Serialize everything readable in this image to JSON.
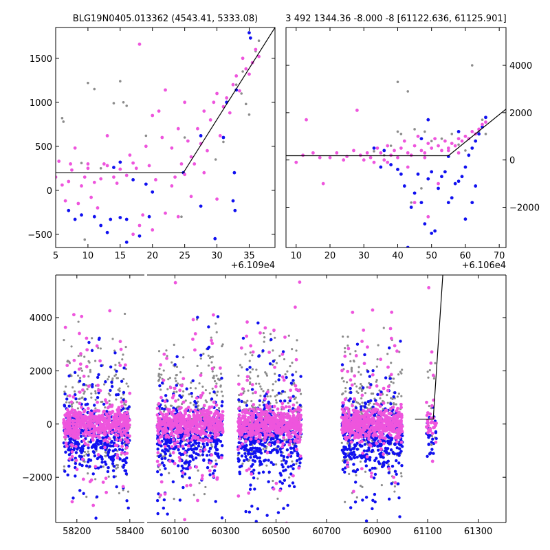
{
  "chart_data": [
    {
      "type": "scatter",
      "panel": "top-left",
      "title": "BLG19N0405.013362 (4543.41, 5333.08)",
      "x_offset_label": "+6.109e4",
      "xlim": [
        5,
        39
      ],
      "ylim": [
        -650,
        1850
      ],
      "x_ticks": [
        5,
        10,
        15,
        20,
        25,
        30,
        35
      ],
      "y_ticks": [
        -500,
        0,
        500,
        1000,
        1500
      ],
      "y_tick_labels": [
        "−500",
        "0",
        "500",
        "1000",
        "1500"
      ],
      "model_line": {
        "x": [
          5,
          24.8,
          39
        ],
        "y": [
          200,
          200,
          1850
        ]
      },
      "series": [
        {
          "name": "gray",
          "color": "#8c8c8c",
          "points": [
            [
              6,
              820
            ],
            [
              6.2,
              780
            ],
            [
              9,
              310
            ],
            [
              10,
              1220
            ],
            [
              11,
              1150
            ],
            [
              14,
              990
            ],
            [
              15,
              1240
            ],
            [
              15.5,
              1000
            ],
            [
              16,
              960
            ],
            [
              12,
              250
            ],
            [
              19,
              620
            ],
            [
              25,
              600
            ],
            [
              26,
              380
            ],
            [
              33,
              1200
            ],
            [
              34,
              1350
            ],
            [
              34.5,
              980
            ],
            [
              35,
              860
            ],
            [
              36,
              1580
            ],
            [
              36.5,
              1700
            ],
            [
              33.8,
              1100
            ],
            [
              24.5,
              -300
            ],
            [
              9.5,
              -560
            ],
            [
              31,
              550
            ],
            [
              29.8,
              350
            ]
          ]
        },
        {
          "name": "blue",
          "color": "#1010f0",
          "points": [
            [
              7,
              -230
            ],
            [
              8,
              -330
            ],
            [
              9,
              -280
            ],
            [
              11,
              -300
            ],
            [
              12,
              -400
            ],
            [
              13,
              -480
            ],
            [
              13.5,
              -330
            ],
            [
              14,
              260
            ],
            [
              15,
              -310
            ],
            [
              16,
              -590
            ],
            [
              15,
              320
            ],
            [
              16,
              -330
            ],
            [
              17,
              120
            ],
            [
              18,
              -520
            ],
            [
              19,
              70
            ],
            [
              20,
              -20
            ],
            [
              19.5,
              -300
            ],
            [
              24.8,
              200
            ],
            [
              27.5,
              -180
            ],
            [
              27.5,
              620
            ],
            [
              29.7,
              -550
            ],
            [
              31,
              600
            ],
            [
              32.5,
              -120
            ],
            [
              32.8,
              -230
            ],
            [
              33,
              1140
            ],
            [
              35,
              1790
            ],
            [
              35.2,
              1730
            ],
            [
              32.7,
              200
            ],
            [
              31.5,
              1000
            ]
          ]
        },
        {
          "name": "magenta",
          "color": "#ee55dd",
          "points": [
            [
              5,
              150
            ],
            [
              5.5,
              330
            ],
            [
              6,
              60
            ],
            [
              6.5,
              -120
            ],
            [
              7,
              100
            ],
            [
              7.3,
              300
            ],
            [
              7.5,
              230
            ],
            [
              8,
              480
            ],
            [
              8.5,
              -150
            ],
            [
              9,
              50
            ],
            [
              9.5,
              150
            ],
            [
              10,
              250
            ],
            [
              10.5,
              -80
            ],
            [
              10,
              300
            ],
            [
              11,
              90
            ],
            [
              11.5,
              -200
            ],
            [
              12,
              130
            ],
            [
              12.5,
              300
            ],
            [
              13,
              620
            ],
            [
              13,
              280
            ],
            [
              14,
              150
            ],
            [
              14.5,
              80
            ],
            [
              15,
              240
            ],
            [
              16,
              170
            ],
            [
              16.5,
              400
            ],
            [
              17,
              310
            ],
            [
              17.5,
              250
            ],
            [
              18,
              1660
            ],
            [
              18,
              -400
            ],
            [
              18.5,
              -280
            ],
            [
              19,
              500
            ],
            [
              19.5,
              280
            ],
            [
              20,
              850
            ],
            [
              20.5,
              120
            ],
            [
              21,
              900
            ],
            [
              21.5,
              600
            ],
            [
              22,
              -260
            ],
            [
              22,
              1140
            ],
            [
              23,
              480
            ],
            [
              23,
              50
            ],
            [
              23.5,
              150
            ],
            [
              24,
              700
            ],
            [
              24.5,
              300
            ],
            [
              25,
              1000
            ],
            [
              25.5,
              560
            ],
            [
              25,
              180
            ],
            [
              26,
              380
            ],
            [
              26.5,
              300
            ],
            [
              27,
              700
            ],
            [
              27.5,
              530
            ],
            [
              28,
              900
            ],
            [
              28.5,
              450
            ],
            [
              29,
              800
            ],
            [
              29.5,
              1000
            ],
            [
              30,
              1100
            ],
            [
              30.5,
              620
            ],
            [
              31,
              950
            ],
            [
              31.5,
              1050
            ],
            [
              32,
              880
            ],
            [
              32.5,
              1200
            ],
            [
              33,
              1300
            ],
            [
              33.5,
              1130
            ],
            [
              34,
              1500
            ],
            [
              34.5,
              1380
            ],
            [
              35,
              1320
            ],
            [
              35.5,
              1450
            ],
            [
              36,
              1600
            ],
            [
              36.5,
              1520
            ],
            [
              26,
              -70
            ],
            [
              28,
              200
            ],
            [
              30,
              -100
            ],
            [
              24,
              -300
            ],
            [
              20,
              -450
            ],
            [
              17,
              -500
            ]
          ]
        }
      ]
    },
    {
      "type": "scatter",
      "panel": "top-right",
      "title": "3 492 1344.36 -8.000 -8 [61122.636, 61125.901]",
      "x_offset_label": "+6.106e4",
      "xlim": [
        7,
        72
      ],
      "ylim": [
        -3700,
        5600
      ],
      "x_ticks": [
        10,
        20,
        30,
        40,
        50,
        60,
        70
      ],
      "y_ticks": [
        -2000,
        0,
        2000,
        4000
      ],
      "y_tick_labels": [
        "−2000",
        "0",
        "2000",
        "4000"
      ],
      "model_line": {
        "x": [
          7,
          55,
          72
        ],
        "y": [
          180,
          180,
          2150
        ]
      },
      "series": [
        {
          "name": "gray",
          "color": "#8c8c8c",
          "points": [
            [
              33,
              370
            ],
            [
              38,
              600
            ],
            [
              40,
              1200
            ],
            [
              41,
              1100
            ],
            [
              40,
              3300
            ],
            [
              43,
              2900
            ],
            [
              45,
              1300
            ],
            [
              48,
              1200
            ],
            [
              50,
              800
            ],
            [
              53,
              900
            ],
            [
              58,
              650
            ],
            [
              62,
              4000
            ],
            [
              64,
              1200
            ],
            [
              66,
              1100
            ],
            [
              47,
              -1200
            ],
            [
              44,
              -1800
            ],
            [
              56,
              1100
            ],
            [
              60,
              400
            ],
            [
              65,
              1700
            ],
            [
              36,
              200
            ]
          ]
        },
        {
          "name": "blue",
          "color": "#1010f0",
          "points": [
            [
              33,
              500
            ],
            [
              35,
              -300
            ],
            [
              36,
              400
            ],
            [
              38,
              -200
            ],
            [
              40,
              -400
            ],
            [
              41,
              -600
            ],
            [
              42,
              -1100
            ],
            [
              43,
              -3700
            ],
            [
              44,
              -2000
            ],
            [
              45,
              -1400
            ],
            [
              46,
              -600
            ],
            [
              47,
              -1800
            ],
            [
              48,
              -2700
            ],
            [
              49,
              -800
            ],
            [
              50,
              -500
            ],
            [
              51,
              -3000
            ],
            [
              52,
              -1200
            ],
            [
              53,
              -700
            ],
            [
              54,
              -500
            ],
            [
              55,
              -1800
            ],
            [
              56,
              -1600
            ],
            [
              57,
              -1000
            ],
            [
              58,
              -900
            ],
            [
              59,
              -700
            ],
            [
              60,
              -300
            ],
            [
              61,
              200
            ],
            [
              62,
              500
            ],
            [
              63,
              800
            ],
            [
              64,
              1100
            ],
            [
              65,
              1400
            ],
            [
              66,
              1800
            ],
            [
              63,
              -1100
            ],
            [
              60,
              -2500
            ],
            [
              55,
              150
            ],
            [
              47,
              900
            ],
            [
              49,
              1700
            ],
            [
              58,
              1200
            ],
            [
              62,
              -1800
            ],
            [
              50,
              -3100
            ]
          ]
        },
        {
          "name": "magenta",
          "color": "#ee55dd",
          "points": [
            [
              10,
              -100
            ],
            [
              12,
              200
            ],
            [
              13,
              1700
            ],
            [
              15,
              300
            ],
            [
              17,
              100
            ],
            [
              18,
              -1000
            ],
            [
              20,
              100
            ],
            [
              22,
              300
            ],
            [
              24,
              0
            ],
            [
              25,
              150
            ],
            [
              27,
              400
            ],
            [
              28,
              2100
            ],
            [
              29,
              200
            ],
            [
              30,
              0
            ],
            [
              31,
              300
            ],
            [
              32,
              100
            ],
            [
              33,
              -100
            ],
            [
              34,
              500
            ],
            [
              35,
              300
            ],
            [
              36,
              0
            ],
            [
              37,
              600
            ],
            [
              38,
              200
            ],
            [
              39,
              400
            ],
            [
              40,
              100
            ],
            [
              41,
              500
            ],
            [
              42,
              800
            ],
            [
              43,
              300
            ],
            [
              44,
              200
            ],
            [
              45,
              600
            ],
            [
              46,
              1000
            ],
            [
              47,
              400
            ],
            [
              48,
              300
            ],
            [
              49,
              700
            ],
            [
              50,
              500
            ],
            [
              51,
              900
            ],
            [
              52,
              600
            ],
            [
              53,
              400
            ],
            [
              54,
              800
            ],
            [
              55,
              500
            ],
            [
              56,
              700
            ],
            [
              57,
              600
            ],
            [
              58,
              900
            ],
            [
              59,
              800
            ],
            [
              60,
              1000
            ],
            [
              61,
              900
            ],
            [
              62,
              1200
            ],
            [
              63,
              1100
            ],
            [
              64,
              1300
            ],
            [
              65,
              1500
            ],
            [
              66,
              1600
            ],
            [
              45,
              -1800
            ],
            [
              49,
              -2400
            ],
            [
              52,
              -1000
            ],
            [
              55,
              400
            ],
            [
              58,
              300
            ],
            [
              37,
              -100
            ],
            [
              43,
              -300
            ],
            [
              48,
              100
            ]
          ]
        }
      ]
    },
    {
      "type": "scatter",
      "panel": "bottom",
      "x_ticks": [
        58200,
        58400,
        60100,
        60300,
        60500,
        60700,
        60900,
        61100,
        61300
      ],
      "y_ticks": [
        -2000,
        0,
        2000,
        4000
      ],
      "y_tick_labels": [
        "−2000",
        "0",
        "2000",
        "4000"
      ],
      "ylim": [
        -3700,
        5600
      ],
      "segments": [
        {
          "xlim": [
            58120,
            58455
          ]
        },
        {
          "xlim": [
            59990,
            61410
          ]
        }
      ],
      "model_line": {
        "x": [
          61050,
          61122,
          61160
        ],
        "y": [
          180,
          180,
          5600
        ]
      },
      "clusters": [
        {
          "x_range": [
            58150,
            58400
          ]
        },
        {
          "x_range": [
            60030,
            60290
          ]
        },
        {
          "x_range": [
            60350,
            60600
          ]
        },
        {
          "x_range": [
            60760,
            61000
          ]
        },
        {
          "x_range": [
            61095,
            61135
          ]
        }
      ],
      "series_colors": {
        "gray": "#8c8c8c",
        "blue": "#1010f0",
        "magenta": "#ee55dd"
      }
    }
  ]
}
